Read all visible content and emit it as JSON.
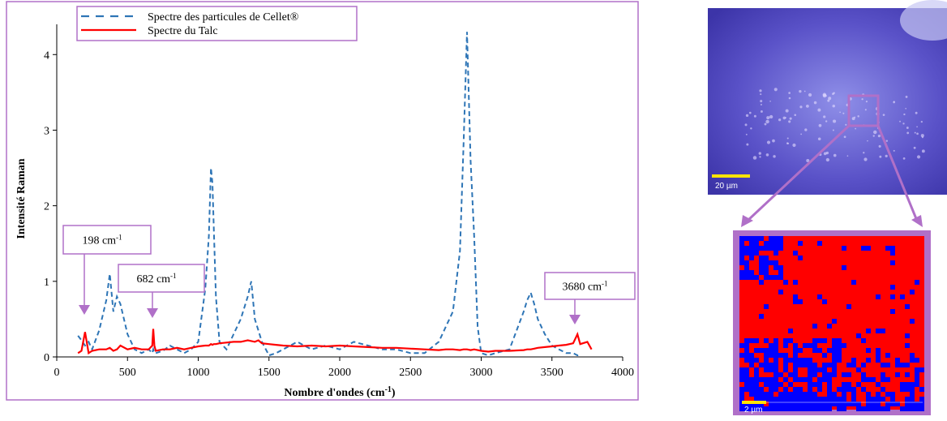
{
  "chart_data": {
    "type": "line",
    "x_label": [
      "Nombre d'ondes (cm",
      "-1",
      ")"
    ],
    "y_label": "Intensité Raman",
    "x": [
      150,
      175,
      200,
      225,
      250,
      300,
      350,
      375,
      400,
      425,
      450,
      500,
      550,
      600,
      650,
      675,
      682,
      690,
      700,
      750,
      800,
      850,
      900,
      950,
      1000,
      1050,
      1075,
      1090,
      1100,
      1110,
      1125,
      1150,
      1200,
      1250,
      1300,
      1350,
      1375,
      1400,
      1425,
      1450,
      1500,
      1550,
      1600,
      1700,
      1800,
      1900,
      2000,
      2100,
      2200,
      2300,
      2400,
      2500,
      2600,
      2700,
      2750,
      2800,
      2850,
      2875,
      2900,
      2925,
      2950,
      2975,
      3000,
      3050,
      3100,
      3200,
      3300,
      3325,
      3350,
      3375,
      3400,
      3450,
      3500,
      3550,
      3600,
      3650,
      3680,
      3700,
      3750,
      3780
    ],
    "series": [
      {
        "name": "Spectre des particules de Cellet®",
        "color": "#2e75b6",
        "dash": true,
        "values": [
          0.28,
          0.22,
          0.15,
          0.2,
          0.1,
          0.35,
          0.75,
          1.1,
          0.6,
          0.8,
          0.7,
          0.3,
          0.1,
          0.05,
          0.1,
          0.05,
          0.1,
          0.05,
          0.05,
          0.08,
          0.15,
          0.1,
          0.05,
          0.1,
          0.2,
          0.9,
          1.6,
          2.5,
          2.3,
          1.7,
          0.8,
          0.2,
          0.1,
          0.3,
          0.5,
          0.8,
          1.0,
          0.5,
          0.35,
          0.2,
          0.02,
          0.05,
          0.1,
          0.2,
          0.1,
          0.15,
          0.1,
          0.2,
          0.15,
          0.1,
          0.1,
          0.05,
          0.05,
          0.2,
          0.4,
          0.6,
          1.4,
          2.8,
          4.3,
          2.6,
          1.6,
          0.4,
          0.05,
          0.02,
          0.05,
          0.1,
          0.6,
          0.75,
          0.85,
          0.7,
          0.5,
          0.3,
          0.15,
          0.1,
          0.05,
          0.05,
          0.02,
          0.03,
          null,
          null
        ]
      },
      {
        "name": "Spectre du Talc",
        "color": "#ff0000",
        "dash": false,
        "values": [
          0.05,
          0.08,
          0.33,
          0.05,
          0.08,
          0.1,
          0.1,
          0.12,
          0.08,
          0.1,
          0.15,
          0.1,
          0.12,
          0.1,
          0.1,
          0.15,
          0.37,
          0.15,
          0.08,
          0.1,
          0.1,
          0.12,
          0.1,
          0.12,
          0.14,
          0.15,
          0.15,
          0.17,
          0.16,
          0.17,
          0.17,
          0.18,
          0.19,
          0.2,
          0.2,
          0.22,
          0.21,
          0.2,
          0.22,
          0.18,
          0.17,
          0.16,
          0.15,
          0.14,
          0.15,
          0.14,
          0.15,
          0.14,
          0.13,
          0.12,
          0.12,
          0.11,
          0.1,
          0.09,
          0.1,
          0.1,
          0.09,
          0.1,
          0.1,
          0.09,
          0.1,
          0.09,
          0.08,
          0.07,
          0.08,
          0.08,
          0.09,
          0.1,
          0.1,
          0.11,
          0.12,
          0.13,
          0.14,
          0.15,
          0.16,
          0.18,
          0.3,
          0.17,
          0.2,
          0.1
        ]
      }
    ],
    "xlim": [
      0,
      4000
    ],
    "xticks": [
      0,
      500,
      1000,
      1500,
      2000,
      2500,
      3000,
      3500,
      4000
    ],
    "ylim": [
      0,
      4.4
    ],
    "yticks": [
      0,
      1,
      2,
      3,
      4
    ],
    "annotations": [
      {
        "text": "198 cm",
        "sup": "-1"
      },
      {
        "text": "682 cm",
        "sup": "-1"
      },
      {
        "text": "3680 cm",
        "sup": "-1"
      }
    ],
    "image_scale_labels": [
      "20 µm",
      "2 µm"
    ]
  }
}
